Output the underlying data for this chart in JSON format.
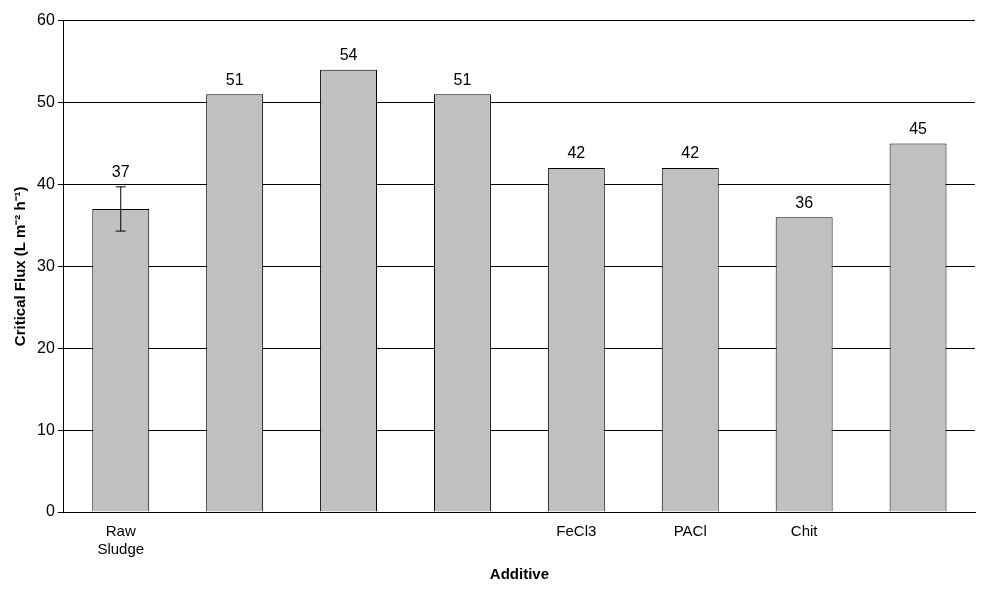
{
  "chart_data": {
    "type": "bar",
    "xlabel": "Additive",
    "ylabel": "Critical Flux (L m⁻² h⁻¹)",
    "categories": [
      "Raw Sludge",
      null,
      null,
      null,
      "FeCl3",
      "PACl",
      "Chit",
      null
    ],
    "values": [
      37,
      51,
      54,
      51,
      42,
      42,
      36,
      45
    ],
    "errors": [
      2.7,
      null,
      null,
      null,
      null,
      null,
      null,
      null
    ],
    "color": "#c0c0c0",
    "ylim": [
      0,
      60
    ],
    "yticks": [
      0,
      10,
      20,
      30,
      40,
      50,
      60
    ],
    "grid": "y",
    "data_labels": true,
    "legend": false
  }
}
